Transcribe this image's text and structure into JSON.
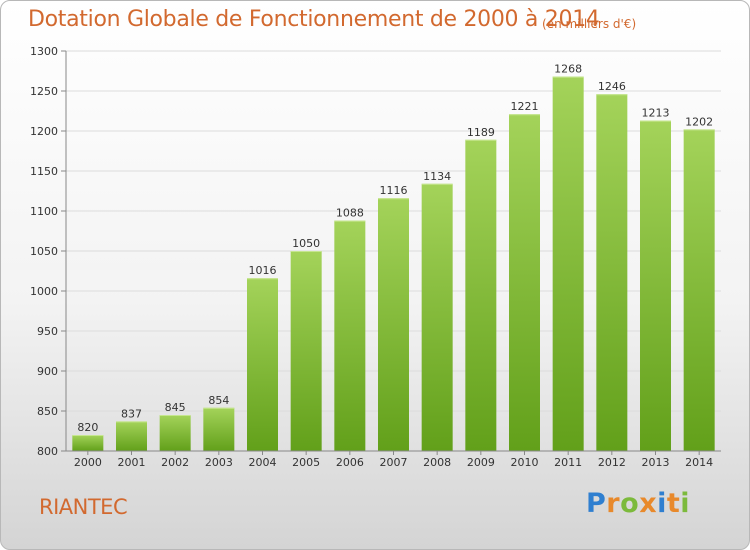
{
  "header": {
    "title": "Dotation Globale de Fonctionnement de 2000 à 2014",
    "subtitle": "(en milliers d'€)"
  },
  "footer": {
    "commune": "RIANTEC",
    "logo_text": "Proxiti"
  },
  "colors": {
    "title": "#d2692f",
    "bar_top": "#a4d35a",
    "bar_bottom": "#62a01a",
    "logo_letters": [
      "#2f7fd0",
      "#e8892b",
      "#7cba3c",
      "#e8892b",
      "#2f7fd0",
      "#e8892b",
      "#7cba3c"
    ]
  },
  "chart_data": {
    "type": "bar",
    "title": "Dotation Globale de Fonctionnement de 2000 à 2014",
    "subtitle": "(en milliers d'€)",
    "categories": [
      "2000",
      "2001",
      "2002",
      "2003",
      "2004",
      "2005",
      "2006",
      "2007",
      "2008",
      "2009",
      "2010",
      "2011",
      "2012",
      "2013",
      "2014"
    ],
    "values": [
      820,
      837,
      845,
      854,
      1016,
      1050,
      1088,
      1116,
      1134,
      1189,
      1221,
      1268,
      1246,
      1213,
      1202
    ],
    "ylim": [
      800,
      1300
    ],
    "yticks": [
      800,
      850,
      900,
      950,
      1000,
      1050,
      1100,
      1150,
      1200,
      1250,
      1300
    ],
    "grid": true,
    "xlabel": "",
    "ylabel": ""
  }
}
